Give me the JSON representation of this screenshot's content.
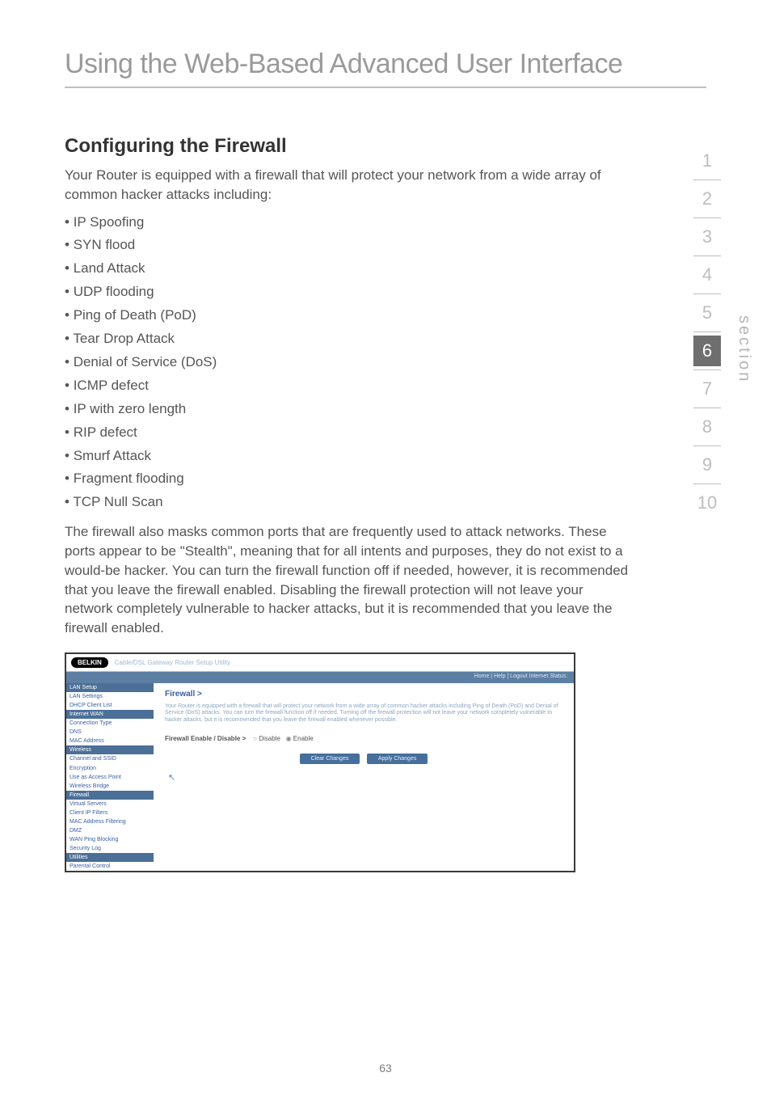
{
  "page": {
    "title": "Using the Web-Based Advanced User Interface",
    "number": "63"
  },
  "section_nav": {
    "items": [
      "1",
      "2",
      "3",
      "4",
      "5",
      "6",
      "7",
      "8",
      "9",
      "10"
    ],
    "active_index": 5,
    "label": "section",
    "active_bg": "#6f6f6f",
    "active_fg": "#ffffff",
    "inactive_fg": "#bdbdbd"
  },
  "heading": "Configuring the Firewall",
  "intro": "Your Router is equipped with a firewall that will protect your network from a wide array of common hacker attacks including:",
  "attacks": [
    "IP Spoofing",
    "SYN flood",
    "Land Attack",
    "UDP flooding",
    "Ping of Death (PoD)",
    "Tear Drop Attack",
    "Denial of Service (DoS)",
    "ICMP defect",
    "IP with zero length",
    "RIP defect",
    "Smurf Attack",
    "Fragment flooding",
    "TCP Null Scan"
  ],
  "body_para": "The firewall also masks common ports that are frequently used to attack networks. These ports appear to be \"Stealth\", meaning that for all intents and purposes, they do not exist to a would-be hacker. You can turn the firewall function off if needed, however, it is recommended that you leave the firewall enabled. Disabling the firewall protection will not leave your network completely vulnerable to hacker attacks, but it is recommended that you leave the firewall enabled.",
  "screenshot": {
    "logo": "BELKIN",
    "crumb": "Cable/DSL Gateway Router Setup Utility",
    "topbar": "Home | Help | Logout    Internet Status:",
    "sidebar": [
      {
        "type": "cat",
        "label": "LAN Setup"
      },
      {
        "type": "item",
        "label": "LAN Settings"
      },
      {
        "type": "item",
        "label": "DHCP Client List"
      },
      {
        "type": "cat",
        "label": "Internet WAN"
      },
      {
        "type": "item",
        "label": "Connection Type"
      },
      {
        "type": "item",
        "label": "DNS"
      },
      {
        "type": "item",
        "label": "MAC Address"
      },
      {
        "type": "cat",
        "label": "Wireless"
      },
      {
        "type": "item",
        "label": "Channel and SSID"
      },
      {
        "type": "item",
        "label": "Encryption"
      },
      {
        "type": "item",
        "label": "Use as Access Point"
      },
      {
        "type": "item",
        "label": "Wireless Bridge"
      },
      {
        "type": "cat",
        "label": "Firewall"
      },
      {
        "type": "item",
        "label": "Virtual Servers"
      },
      {
        "type": "item",
        "label": "Client IP Filters"
      },
      {
        "type": "item",
        "label": "MAC Address Filtering"
      },
      {
        "type": "item",
        "label": "DMZ"
      },
      {
        "type": "item",
        "label": "WAN Ping Blocking"
      },
      {
        "type": "item",
        "label": "Security Log"
      },
      {
        "type": "cat",
        "label": "Utilities"
      },
      {
        "type": "item",
        "label": "Parental Control"
      }
    ],
    "main": {
      "heading": "Firewall >",
      "desc": "Your Router is equipped with a firewall that will protect your network from a wide array of common hacker attacks including Ping of Death (PoD) and Denial of Service (DoS) attacks. You can turn the firewall function off if needed. Turning off the firewall protection will not leave your network completely vulnerable to hacker attacks, but it is recommended that you leave the firewall enabled whenever possible.",
      "toggle_label": "Firewall Enable / Disable >",
      "opt_disable": "Disable",
      "opt_enable": "Enable",
      "btn_clear": "Clear Changes",
      "btn_apply": "Apply Changes"
    },
    "colors": {
      "border": "#3a3a3a",
      "cat_bg": "#4b6f97",
      "link": "#3a5fa4",
      "btn_bg": "#466f9e",
      "crumb": "#9fb8d0"
    }
  }
}
